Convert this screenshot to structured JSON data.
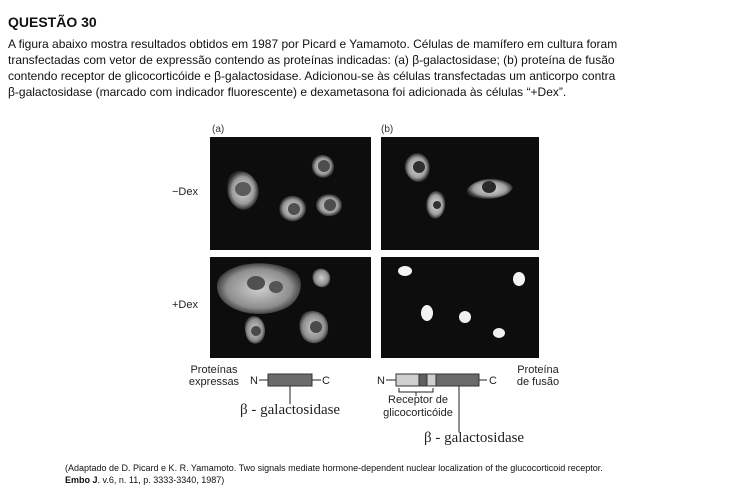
{
  "question": {
    "title": "QUESTÃO 30",
    "line1": "A figura abaixo mostra resultados obtidos em 1987 por Picard e Yamamoto. Células de mamífero em cultura foram",
    "line2": "transfectadas com vetor de expressão contendo as proteínas indicadas: (a) β-galactosidase; (b) proteína de fusão",
    "line3": "contendo receptor de glicocorticóide e β-galactosidase. Adicionou-se às células transfectadas um anticorpo contra",
    "line4": "β-galactosidase (marcado com indicador fluorescente) e dexametasona foi adicionada às células “+Dex”."
  },
  "figure": {
    "panel_a_label": "(a)",
    "panel_b_label": "(b)",
    "row_minus": "−Dex",
    "row_plus": "+Dex",
    "proteins_label_1": "Proteínas",
    "proteins_label_2": "expressas",
    "n_terminal": "N",
    "c_terminal": "C",
    "beta_gal_label": "β - galactosidase",
    "receptor_label_1": "Receptor de",
    "receptor_label_2": "glicocorticóide",
    "fusion_label_1": "Proteína",
    "fusion_label_2": "de fusão",
    "colors": {
      "panel_bg": "#0d0d0d",
      "beta_gal_bar": "#6b6b6b",
      "receptor_bar": "#cfcfcf"
    }
  },
  "caption": {
    "line1": "(Adaptado de D. Picard e K. R. Yamamoto. Two signals mediate hormone-dependent nuclear localization of the glucocorticoid receptor.",
    "journal": "Embo J",
    "line2_rest": ". v.6, n. 11, p. 3333-3340, 1987)"
  }
}
